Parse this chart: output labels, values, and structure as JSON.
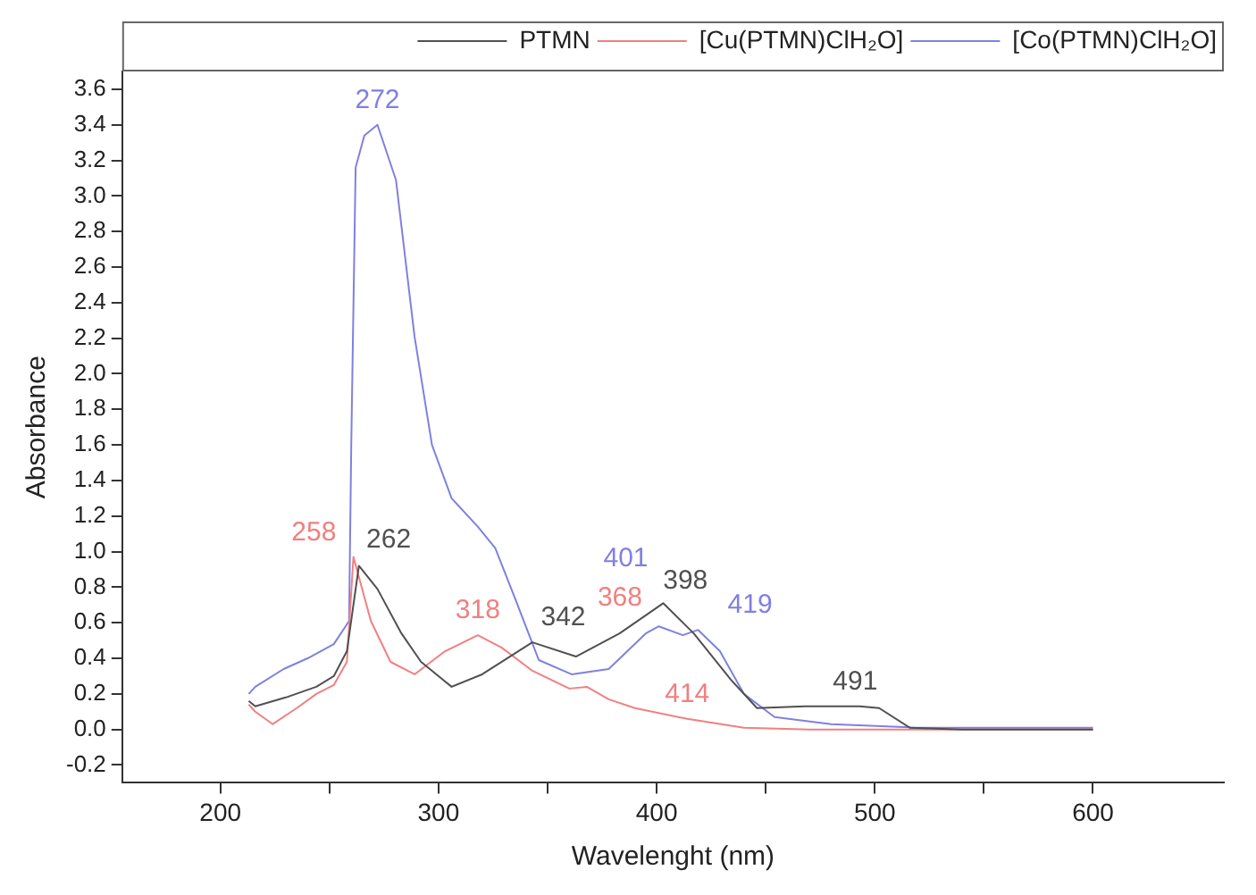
{
  "chart_data": {
    "type": "line",
    "xlabel": "Wavelenght (nm)",
    "ylabel": "Absorbance",
    "xlim": [
      155,
      660
    ],
    "xticks": [
      200,
      {
        "value": 250,
        "label": null
      },
      300,
      {
        "value": 350,
        "label": null
      },
      400,
      {
        "value": 450,
        "label": null
      },
      500,
      {
        "value": 550,
        "label": null
      },
      600
    ],
    "ylim": [
      -0.3,
      3.7
    ],
    "yticks": [
      -0.2,
      {
        "value": 0,
        "label": "0.0"
      },
      0.2,
      0.4,
      0.6,
      0.8,
      {
        "value": 1,
        "label": "1.0"
      },
      1.2,
      1.4,
      1.6,
      1.8,
      {
        "value": 2,
        "label": "2.0"
      },
      2.2,
      2.4,
      2.6,
      2.8,
      {
        "value": 3,
        "label": "3.0"
      },
      3.2,
      3.4,
      3.6
    ],
    "grid": false,
    "legend": "top right",
    "marker": "none",
    "line_style": "solid",
    "series": [
      {
        "name": "PTMN",
        "color": "#505050",
        "x": [
          213,
          216,
          230,
          244,
          252,
          258,
          263.5,
          272,
          283,
          292,
          306,
          320,
          343,
          363,
          383,
          403,
          417,
          434,
          446,
          468,
          493,
          502,
          516,
          540,
          600
        ],
        "values": [
          0.16,
          0.13,
          0.18,
          0.24,
          0.3,
          0.44,
          0.92,
          0.79,
          0.54,
          0.38,
          0.24,
          0.31,
          0.49,
          0.41,
          0.54,
          0.71,
          0.54,
          0.28,
          0.12,
          0.13,
          0.13,
          0.12,
          0.01,
          0.0,
          0.0
        ]
      },
      {
        "name": "[Cu(PTMN)ClH₂O]",
        "color": "#f08080",
        "x": [
          213,
          216,
          224,
          235,
          244,
          252,
          258,
          261,
          269,
          278,
          289,
          303,
          318,
          329,
          343,
          360,
          368,
          378,
          390,
          414,
          440,
          470,
          600
        ],
        "values": [
          0.14,
          0.1,
          0.03,
          0.12,
          0.2,
          0.25,
          0.38,
          0.97,
          0.61,
          0.38,
          0.31,
          0.44,
          0.53,
          0.46,
          0.33,
          0.23,
          0.24,
          0.17,
          0.12,
          0.06,
          0.01,
          0.0,
          0.0
        ]
      },
      {
        "name": "[Co(PTMN)ClH₂O]",
        "color": "#8080e0",
        "x": [
          213,
          216,
          229,
          240,
          252,
          259,
          260,
          262,
          266,
          272,
          280.5,
          289,
          297,
          306,
          318,
          326,
          335,
          346,
          361,
          378,
          395,
          401,
          412,
          419,
          429,
          440,
          454,
          480,
          519,
          600
        ],
        "values": [
          0.2,
          0.24,
          0.34,
          0.4,
          0.48,
          0.61,
          1.6,
          3.16,
          3.34,
          3.4,
          3.09,
          2.21,
          1.6,
          1.3,
          1.14,
          1.02,
          0.74,
          0.39,
          0.31,
          0.34,
          0.54,
          0.58,
          0.53,
          0.56,
          0.44,
          0.2,
          0.07,
          0.03,
          0.01,
          0.01
        ]
      }
    ],
    "annotations": [
      {
        "text": "272",
        "x": 272,
        "y": 3.4
      },
      {
        "text": "258",
        "x": 258,
        "y": 0.97
      },
      {
        "text": "262",
        "x": 262,
        "y": 0.93
      },
      {
        "text": "318",
        "x": 318,
        "y": 0.53
      },
      {
        "text": "342",
        "x": 342,
        "y": 0.49
      },
      {
        "text": "368",
        "x": 368,
        "y": 0.24
      },
      {
        "text": "398",
        "x": 398,
        "y": 0.7
      },
      {
        "text": "401",
        "x": 401,
        "y": 0.58
      },
      {
        "text": "419",
        "x": 419,
        "y": 0.56
      },
      {
        "text": "414",
        "x": 414,
        "y": 0.06
      },
      {
        "text": "491",
        "x": 491,
        "y": 0.13
      }
    ]
  }
}
